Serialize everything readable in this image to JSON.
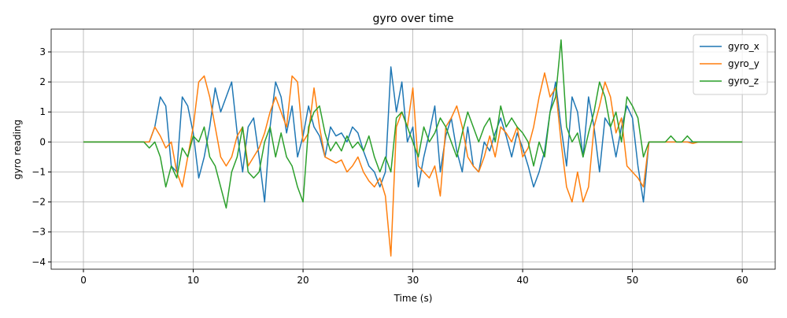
{
  "chart_data": {
    "type": "line",
    "title": "gyro over time",
    "x_label": "Time (s)",
    "y_label": "gyro reading",
    "x": [
      0,
      0.5,
      1,
      1.5,
      2,
      2.5,
      3,
      3.5,
      4,
      4.5,
      5,
      5.5,
      6,
      6.5,
      7,
      7.5,
      8,
      8.5,
      9,
      9.5,
      10,
      10.5,
      11,
      11.5,
      12,
      12.5,
      13,
      13.5,
      14,
      14.5,
      15,
      15.5,
      16,
      16.5,
      17,
      17.5,
      18,
      18.5,
      19,
      19.5,
      20,
      20.5,
      21,
      21.5,
      22,
      22.5,
      23,
      23.5,
      24,
      24.5,
      25,
      25.5,
      26,
      26.5,
      27,
      27.5,
      28,
      28.5,
      29,
      29.5,
      30,
      30.5,
      31,
      31.5,
      32,
      32.5,
      33,
      33.5,
      34,
      34.5,
      35,
      35.5,
      36,
      36.5,
      37,
      37.5,
      38,
      38.5,
      39,
      39.5,
      40,
      40.5,
      41,
      41.5,
      42,
      42.5,
      43,
      43.5,
      44,
      44.5,
      45,
      45.5,
      46,
      46.5,
      47,
      47.5,
      48,
      48.5,
      49,
      49.5,
      50,
      50.5,
      51,
      51.5,
      52,
      52.5,
      53,
      53.5,
      54,
      54.5,
      55,
      55.5,
      56,
      56.5,
      57,
      57.5,
      58,
      58.5,
      59,
      59.5,
      60
    ],
    "series": [
      {
        "name": "gyro_x",
        "color": "#1f77b4",
        "values": [
          0,
          0,
          0,
          0,
          0,
          0,
          0,
          0,
          0,
          0,
          0,
          0,
          0,
          0.5,
          1.5,
          1.2,
          -0.8,
          -1.0,
          1.5,
          1.2,
          0.3,
          -1.2,
          -0.5,
          0.5,
          1.8,
          1.0,
          1.5,
          2.0,
          0.3,
          -1.0,
          0.5,
          0.8,
          -0.5,
          -2.0,
          0.5,
          2.0,
          1.5,
          0.3,
          1.2,
          -0.5,
          0.2,
          1.2,
          0.5,
          0.2,
          -0.5,
          0.5,
          0.2,
          0.3,
          0.0,
          0.5,
          0.3,
          -0.3,
          -0.8,
          -1.0,
          -1.5,
          -1.0,
          2.5,
          1.0,
          2.0,
          0.0,
          0.5,
          -1.5,
          -0.5,
          0.3,
          1.2,
          -1.0,
          0.2,
          0.8,
          -0.3,
          -1.0,
          0.5,
          -0.8,
          -1.0,
          0.0,
          -0.3,
          0.3,
          0.8,
          0.2,
          -0.5,
          0.3,
          -0.2,
          -0.8,
          -1.5,
          -1.0,
          -0.3,
          1.0,
          2.0,
          0.5,
          -0.8,
          1.5,
          1.0,
          -0.5,
          1.5,
          0.5,
          -1.0,
          0.8,
          0.5,
          -0.5,
          0.5,
          1.2,
          0.8,
          -0.8,
          -2.0,
          0,
          0,
          0,
          0,
          0,
          0,
          0,
          0,
          0,
          0,
          0,
          0,
          0,
          0,
          0,
          0,
          0,
          0
        ]
      },
      {
        "name": "gyro_y",
        "color": "#ff7f0e",
        "values": [
          0,
          0,
          0,
          0,
          0,
          0,
          0,
          0,
          0,
          0,
          0,
          0,
          0,
          0.5,
          0.2,
          -0.2,
          0.0,
          -1.0,
          -1.5,
          -0.5,
          0.5,
          2.0,
          2.2,
          1.5,
          0.5,
          -0.5,
          -0.8,
          -0.5,
          0.2,
          0.5,
          -0.8,
          -0.5,
          -0.2,
          0.3,
          1.0,
          1.5,
          1.0,
          0.5,
          2.2,
          2.0,
          0.0,
          0.3,
          1.8,
          0.5,
          -0.5,
          -0.6,
          -0.7,
          -0.6,
          -1.0,
          -0.8,
          -0.5,
          -1.0,
          -1.3,
          -1.5,
          -1.2,
          -1.8,
          -3.8,
          0.5,
          1.0,
          0.5,
          1.8,
          -0.8,
          -1.0,
          -1.2,
          -0.8,
          -1.8,
          0.5,
          0.8,
          1.2,
          0.5,
          -0.5,
          -0.8,
          -1.0,
          -0.5,
          0.2,
          -0.5,
          0.5,
          0.3,
          0.0,
          0.5,
          -0.5,
          -0.2,
          0.5,
          1.5,
          2.3,
          1.5,
          1.8,
          0.0,
          -1.5,
          -2.0,
          -1.0,
          -2.0,
          -1.5,
          0.5,
          1.2,
          2.0,
          1.5,
          0.3,
          0.8,
          -0.8,
          -1.0,
          -1.2,
          -1.5,
          0,
          0,
          0,
          0,
          0,
          0,
          0,
          0,
          -0.05,
          0,
          0,
          0,
          0,
          0,
          0,
          0,
          0,
          0
        ]
      },
      {
        "name": "gyro_z",
        "color": "#2ca02c",
        "values": [
          0,
          0,
          0,
          0,
          0,
          0,
          0,
          0,
          0,
          0,
          0,
          0,
          -0.2,
          0.0,
          -0.5,
          -1.5,
          -0.8,
          -1.2,
          -0.2,
          -0.5,
          0.2,
          0.0,
          0.5,
          -0.5,
          -0.8,
          -1.5,
          -2.2,
          -1.0,
          -0.5,
          0.5,
          -1.0,
          -1.2,
          -1.0,
          0.0,
          0.5,
          -0.5,
          0.3,
          -0.5,
          -0.8,
          -1.5,
          -2.0,
          0.5,
          1.0,
          1.2,
          0.3,
          -0.3,
          0.0,
          -0.3,
          0.2,
          -0.2,
          0.0,
          -0.3,
          0.2,
          -0.5,
          -1.0,
          -0.5,
          -1.0,
          0.8,
          1.0,
          0.5,
          0.0,
          -0.5,
          0.5,
          0.0,
          0.3,
          0.8,
          0.5,
          0.0,
          -0.5,
          0.3,
          1.0,
          0.5,
          0.0,
          0.5,
          0.8,
          0.0,
          1.2,
          0.5,
          0.8,
          0.5,
          0.3,
          0.0,
          -0.8,
          0.0,
          -0.5,
          1.0,
          1.5,
          3.4,
          0.5,
          0.0,
          0.3,
          -0.5,
          0.3,
          1.0,
          2.0,
          1.5,
          0.5,
          1.0,
          0.0,
          1.5,
          1.2,
          0.8,
          -0.5,
          0,
          0,
          0,
          0,
          0.2,
          0,
          0,
          0.2,
          0,
          0,
          0,
          0,
          0,
          0,
          0,
          0,
          0,
          0
        ]
      }
    ],
    "xlim": [
      -2.94,
      63.0
    ],
    "xticks": [
      0,
      10,
      20,
      30,
      40,
      50,
      60
    ],
    "ylim": [
      -4.24,
      3.76
    ],
    "yticks": [
      {
        "value": -4,
        "label": "−4"
      },
      {
        "value": -3,
        "label": "−3"
      },
      {
        "value": -2,
        "label": "−2"
      },
      {
        "value": -1,
        "label": "−1"
      },
      0,
      1,
      2,
      3
    ],
    "grid": true,
    "legend": "upper right"
  }
}
